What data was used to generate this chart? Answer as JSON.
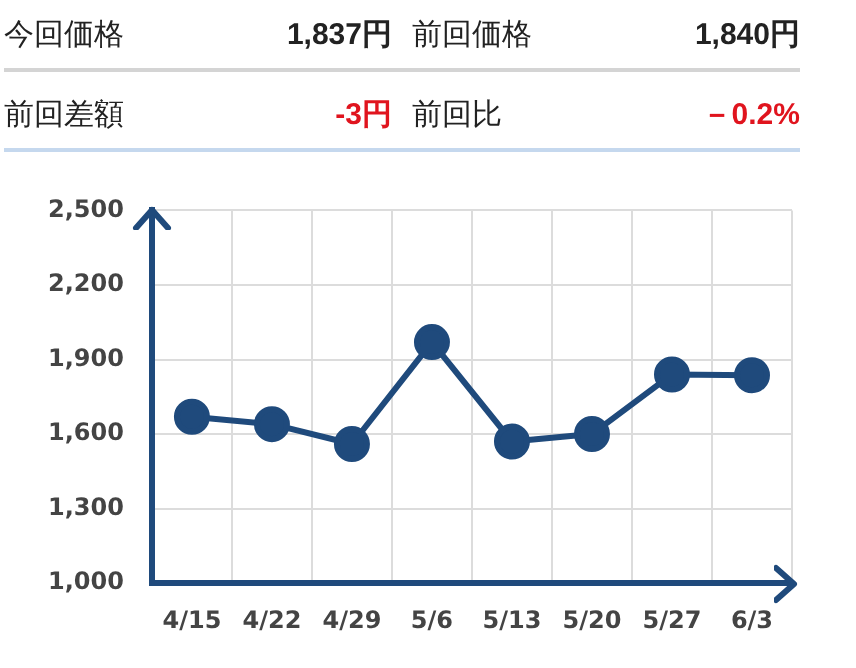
{
  "chart_data": {
    "type": "line",
    "annotations": [
      "今回価格",
      "1,837円",
      "前回価格",
      "1,840円",
      "前回差額",
      "-3円",
      "前回比",
      "－0.2%"
    ],
    "categories": [
      "4/15",
      "4/22",
      "4/29",
      "5/6",
      "5/13",
      "5/20",
      "5/27",
      "6/3"
    ],
    "series": [
      {
        "color": "#1f4a7c",
        "values": [
          1670,
          1640,
          1560,
          1970,
          1570,
          1600,
          1840,
          1837
        ]
      }
    ],
    "ylim": [
      1000,
      2500
    ],
    "yticks": [
      {
        "value": 1000,
        "label": "1,000"
      },
      {
        "value": 1300,
        "label": "1,300"
      },
      {
        "value": 1600,
        "label": "1,600"
      },
      {
        "value": 1900,
        "label": "1,900"
      },
      {
        "value": 2200,
        "label": "2,200"
      },
      {
        "value": 2500,
        "label": "2,500"
      }
    ],
    "grid": true,
    "legend": false,
    "marker": "circle",
    "line_style": "solid"
  }
}
